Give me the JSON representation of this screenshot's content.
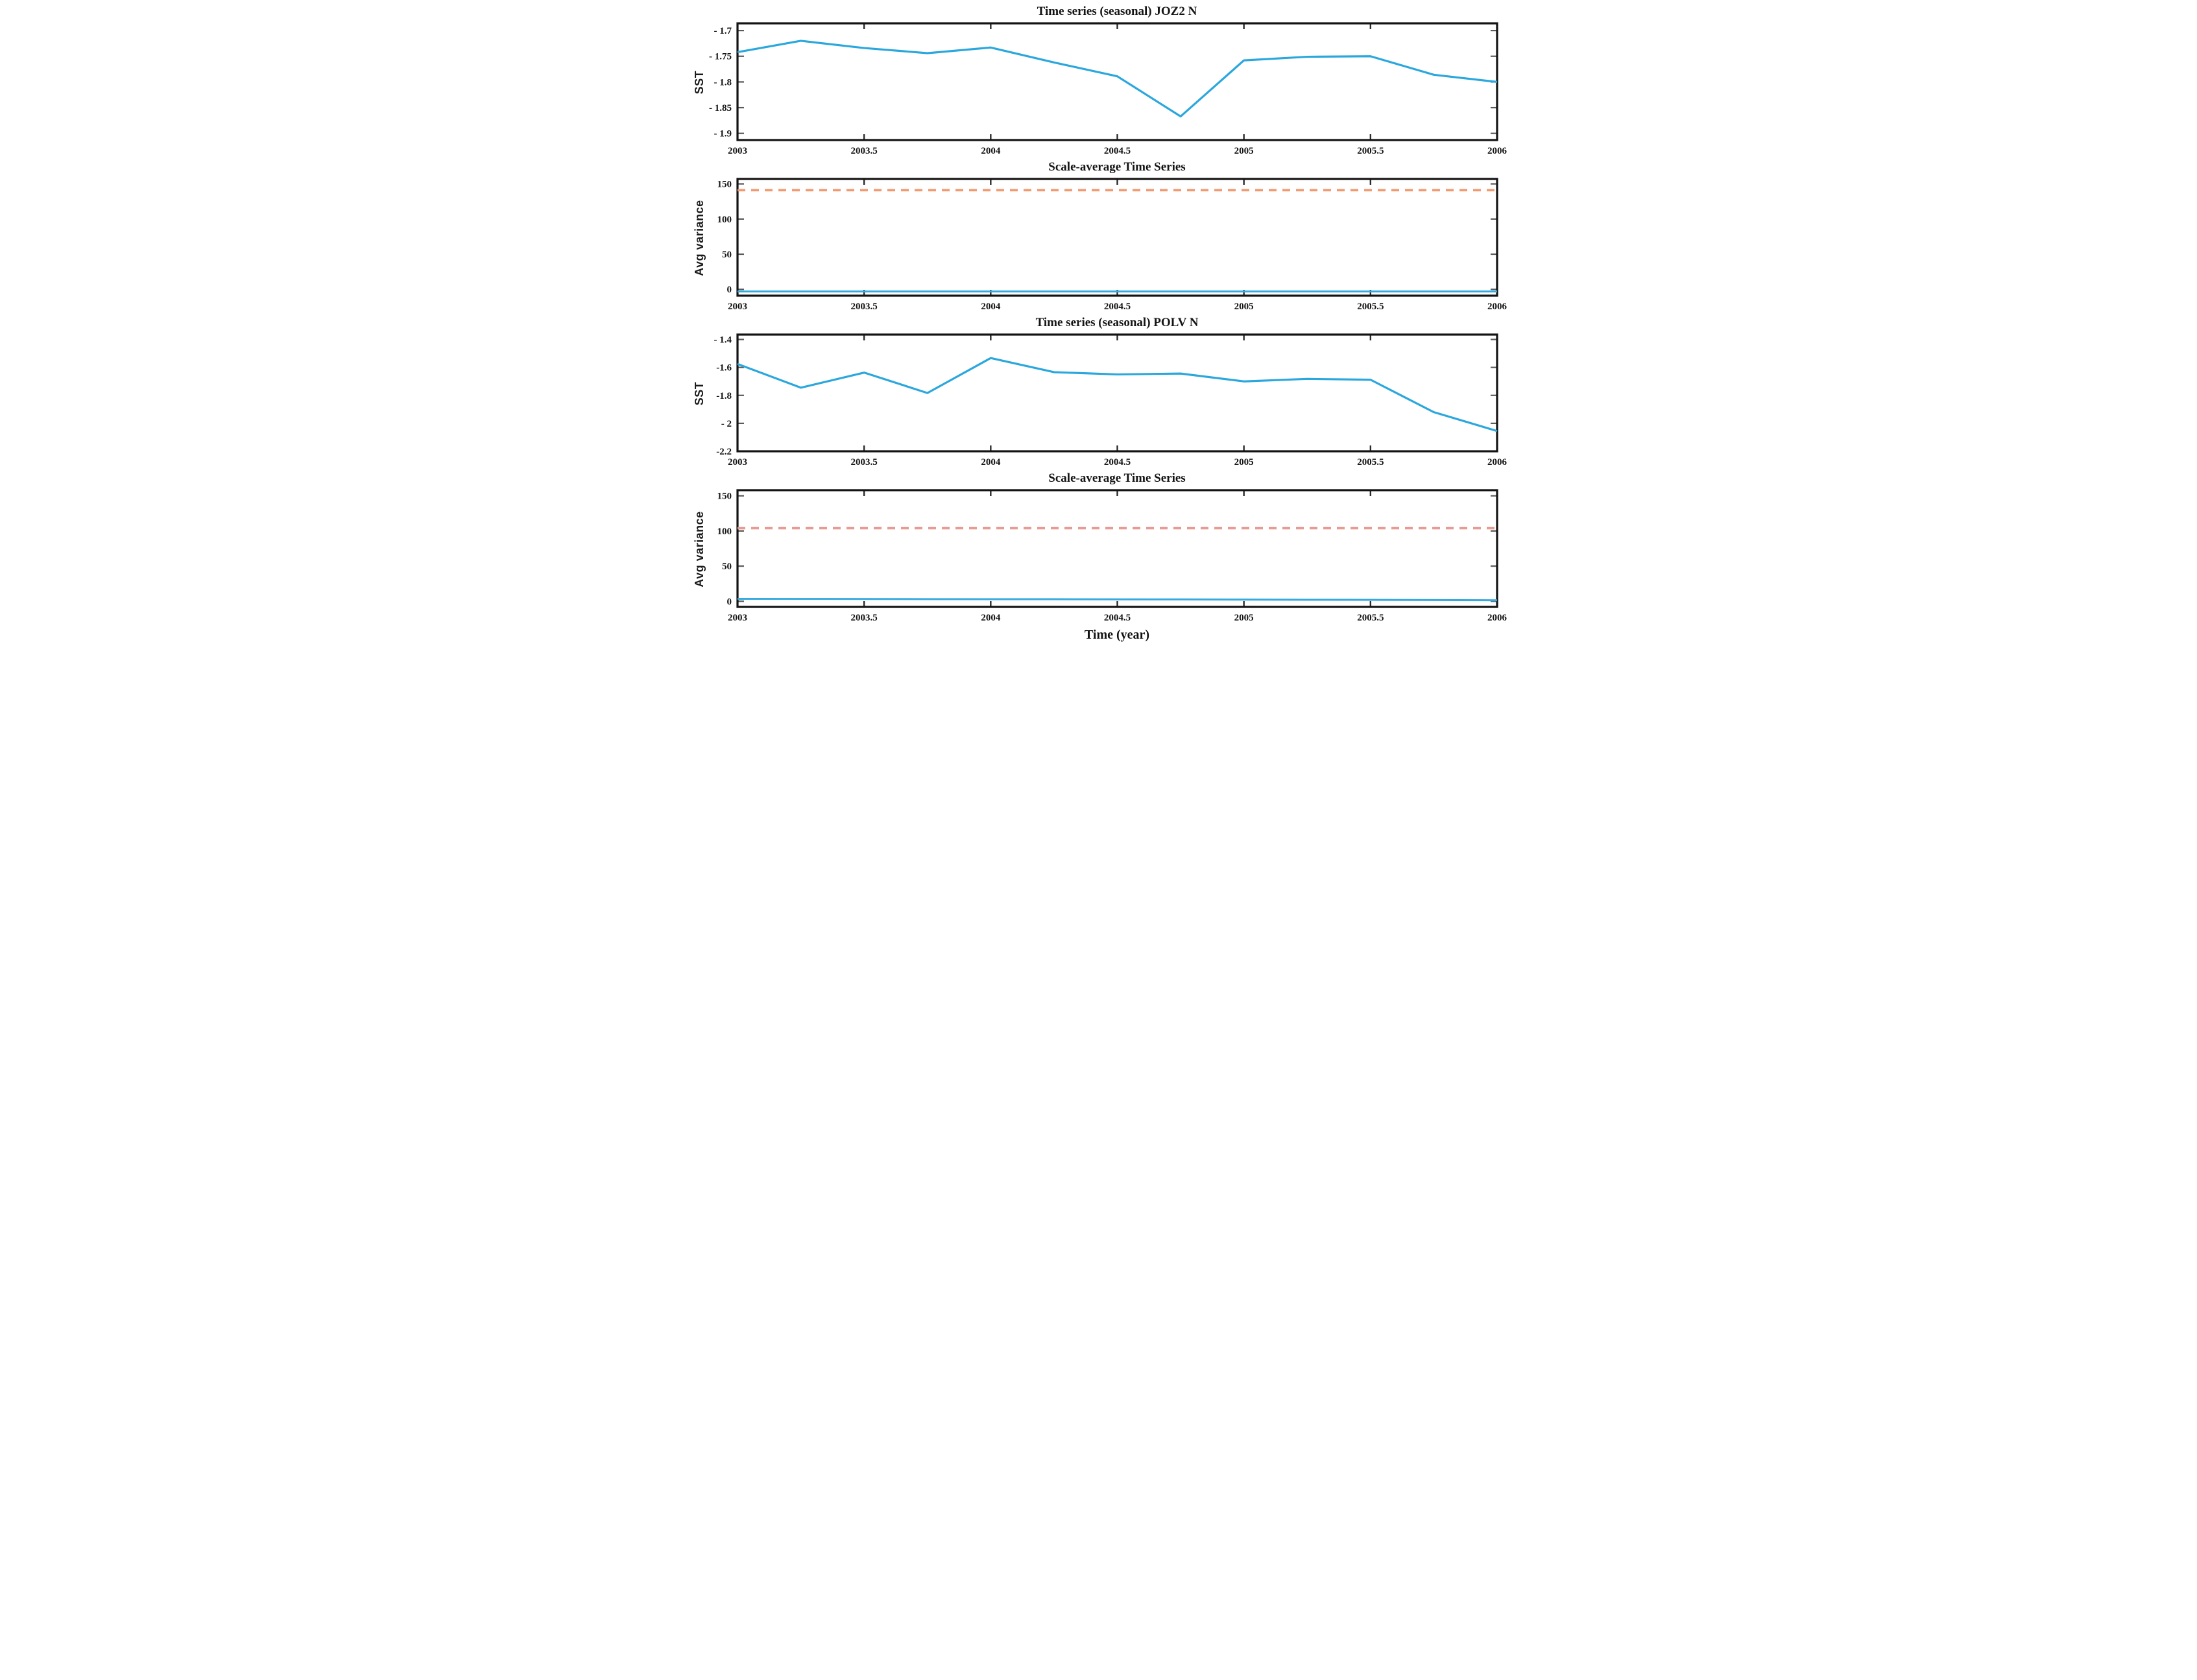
{
  "figure": {
    "xlabel": "Time (year)",
    "background": "#ffffff",
    "axis_color": "#131313",
    "tick_color": "#444444",
    "xticks": [
      2003,
      2003.5,
      2004,
      2004.5,
      2005,
      2005.5,
      2006
    ],
    "xtick_labels": [
      "2003",
      "2003.5",
      "2004",
      "2004.5",
      "2005",
      "2005.5",
      "2006"
    ]
  },
  "chart_data": [
    {
      "type": "line",
      "title": "Time series (seasonal) JOZ2 N",
      "ylabel": "SST",
      "xlim": [
        2003,
        2006
      ],
      "ylim": [
        -1.913,
        -1.686
      ],
      "yticks": [
        -1.7,
        -1.75,
        -1.8,
        -1.85,
        -1.9
      ],
      "ytick_labels": [
        "- 1.7",
        "- 1.75",
        "- 1.8",
        "- 1.85",
        "- 1.9"
      ],
      "grid": false,
      "legend": null,
      "x": [
        2003,
        2003.25,
        2003.5,
        2003.75,
        2004,
        2004.25,
        2004.5,
        2004.75,
        2005,
        2005.25,
        2005.5,
        2005.75,
        2006
      ],
      "series": [
        {
          "name": "sst-seasonal-joz2",
          "color": "#2aa7dd",
          "width": 3.2,
          "dash": null,
          "values": [
            -1.742,
            -1.72,
            -1.734,
            -1.744,
            -1.733,
            -1.762,
            -1.789,
            -1.867,
            -1.758,
            -1.751,
            -1.75,
            -1.786,
            -1.8
          ]
        }
      ]
    },
    {
      "type": "line",
      "title": "Scale-average Time Series",
      "ylabel": "Avg variance",
      "xlim": [
        2003,
        2006
      ],
      "ylim": [
        -9,
        157
      ],
      "yticks": [
        0,
        50,
        100,
        150
      ],
      "ytick_labels": [
        "0",
        "50",
        "100",
        "150"
      ],
      "grid": false,
      "legend": null,
      "x": [
        2003,
        2003.25,
        2003.5,
        2003.75,
        2004,
        2004.25,
        2004.5,
        2004.75,
        2005,
        2005.25,
        2005.5,
        2005.75,
        2006
      ],
      "series": [
        {
          "name": "significance-level-joz2",
          "color": "#f29970",
          "width": 3.6,
          "dash": [
            12,
            9
          ],
          "values": [
            141,
            141,
            141,
            141,
            141,
            141,
            141,
            141,
            141,
            141,
            141,
            141,
            141
          ]
        },
        {
          "name": "avg-variance-joz2",
          "color": "#35aade",
          "width": 3,
          "dash": null,
          "values": [
            -3,
            -3,
            -3,
            -3,
            -3,
            -3,
            -3,
            -3,
            -3,
            -3,
            -3,
            -3,
            -3
          ]
        }
      ]
    },
    {
      "type": "line",
      "title": "Time series (seasonal) POLV N",
      "ylabel": "SST",
      "xlim": [
        2003,
        2006
      ],
      "ylim": [
        -2.2,
        -1.365
      ],
      "yticks": [
        -1.4,
        -1.6,
        -1.8,
        -2.0,
        -2.2
      ],
      "ytick_labels": [
        "- 1.4",
        "-1.6",
        "-1.8",
        "- 2",
        "-2.2"
      ],
      "grid": false,
      "legend": null,
      "x": [
        2003,
        2003.25,
        2003.5,
        2003.75,
        2004,
        2004.25,
        2004.5,
        2004.75,
        2005,
        2005.25,
        2005.5,
        2005.75,
        2006
      ],
      "series": [
        {
          "name": "sst-seasonal-polv",
          "color": "#2aa7dd",
          "width": 3.2,
          "dash": null,
          "values": [
            -1.575,
            -1.745,
            -1.637,
            -1.783,
            -1.533,
            -1.634,
            -1.65,
            -1.644,
            -1.7,
            -1.682,
            -1.688,
            -1.92,
            -2.055
          ]
        }
      ]
    },
    {
      "type": "line",
      "title": "Scale-average Time Series",
      "ylabel": "Avg variance",
      "xlim": [
        2003,
        2006
      ],
      "ylim": [
        -8,
        158
      ],
      "yticks": [
        0,
        50,
        100,
        150
      ],
      "ytick_labels": [
        "0",
        "50",
        "100",
        "150"
      ],
      "grid": false,
      "legend": null,
      "x": [
        2003,
        2003.25,
        2003.5,
        2003.75,
        2004,
        2004.25,
        2004.5,
        2004.75,
        2005,
        2005.25,
        2005.5,
        2005.75,
        2006
      ],
      "series": [
        {
          "name": "significance-level-polv",
          "color": "#e79c93",
          "width": 3.6,
          "dash": [
            12,
            9
          ],
          "values": [
            104,
            104,
            104,
            104,
            104,
            104,
            104,
            104,
            104,
            104,
            104,
            104,
            104
          ]
        },
        {
          "name": "avg-variance-polv",
          "color": "#35aade",
          "width": 3,
          "dash": null,
          "values": [
            3.5,
            3.4,
            3.3,
            3.1,
            3.0,
            2.9,
            2.7,
            2.6,
            2.4,
            2.2,
            2.0,
            1.8,
            1.5
          ]
        }
      ]
    }
  ]
}
